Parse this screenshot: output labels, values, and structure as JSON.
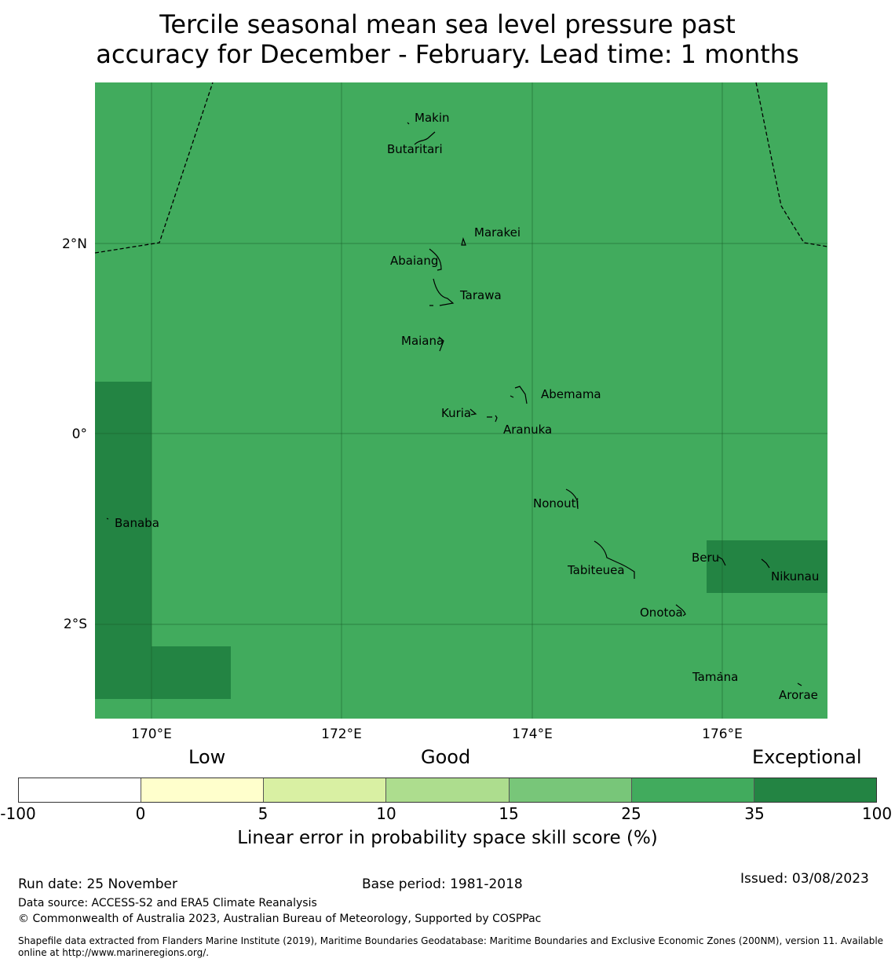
{
  "title": {
    "line1": "Tercile seasonal mean sea level pressure past",
    "line2": "accuracy for December - February. Lead time: 1 months"
  },
  "map": {
    "base_color": "#41ab5d",
    "exceptional_color": "#238443",
    "lon_labels": [
      "170°E",
      "172°E",
      "174°E",
      "176°E"
    ],
    "lat_labels": [
      "2°N",
      "0°",
      "2°S"
    ],
    "islands": [
      "Makin",
      "Butaritari",
      "Marakei",
      "Abaiang",
      "Tarawa",
      "Maiana",
      "Abemama",
      "Kuria",
      "Aranuka",
      "Banaba",
      "Nonouti",
      "Beru",
      "Nikunau",
      "Tabiteuea",
      "Onotoa",
      "Tamana",
      "Arorae"
    ]
  },
  "colorbar": {
    "categories": [
      "Low",
      "Good",
      "Exceptional"
    ],
    "ticks": [
      "-100",
      "0",
      "5",
      "10",
      "15",
      "25",
      "35",
      "100"
    ],
    "colors": [
      "#ffffff",
      "#ffffcc",
      "#d9f0a3",
      "#addd8e",
      "#78c679",
      "#41ab5d",
      "#238443"
    ],
    "label": "Linear error in probability space skill score (%)"
  },
  "footer": {
    "run_date": "Run date: 25 November",
    "base_period": "Base period: 1981-2018",
    "issued": "Issued: 03/08/2023",
    "data_source": "Data source: ACCESS-S2 and ERA5 Climate Reanalysis",
    "copyright": "© Commonwealth of Australia 2023, Australian Bureau of Meteorology, Supported by COSPPac",
    "shapefile": "Shapefile data extracted from Flanders Marine Institute (2019), Maritime Boundaries Geodatabase: Maritime Boundaries and Exclusive Economic Zones (200NM), version 11. Available online at http://www.marineregions.org/."
  }
}
